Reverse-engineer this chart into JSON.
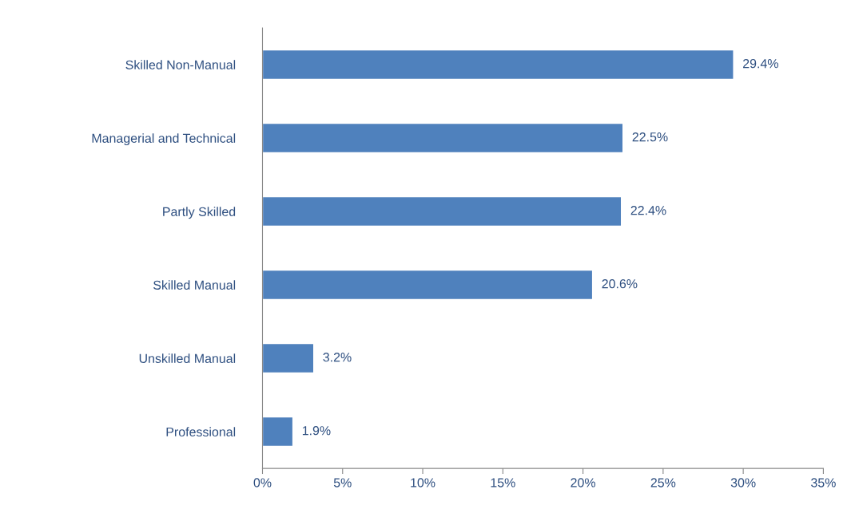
{
  "chart_data": {
    "type": "bar",
    "orientation": "horizontal",
    "categories": [
      "Skilled Non-Manual",
      "Managerial and Technical",
      "Partly Skilled",
      "Skilled Manual",
      "Unskilled Manual",
      "Professional"
    ],
    "values": [
      29.4,
      22.5,
      22.4,
      20.6,
      3.2,
      1.9
    ],
    "value_labels": [
      "29.4%",
      "22.5%",
      "22.4%",
      "20.6%",
      "3.2%",
      "1.9%"
    ],
    "color": "#4f81bd",
    "xlim": [
      0,
      35
    ],
    "xticks": [
      {
        "value": 0,
        "label": "0%"
      },
      {
        "value": 5,
        "label": "5%"
      },
      {
        "value": 10,
        "label": "10%"
      },
      {
        "value": 15,
        "label": "15%"
      },
      {
        "value": 20,
        "label": "20%"
      },
      {
        "value": 25,
        "label": "25%"
      },
      {
        "value": 30,
        "label": "30%"
      },
      {
        "value": 35,
        "label": "35%"
      }
    ],
    "grid": false,
    "legend": false
  }
}
